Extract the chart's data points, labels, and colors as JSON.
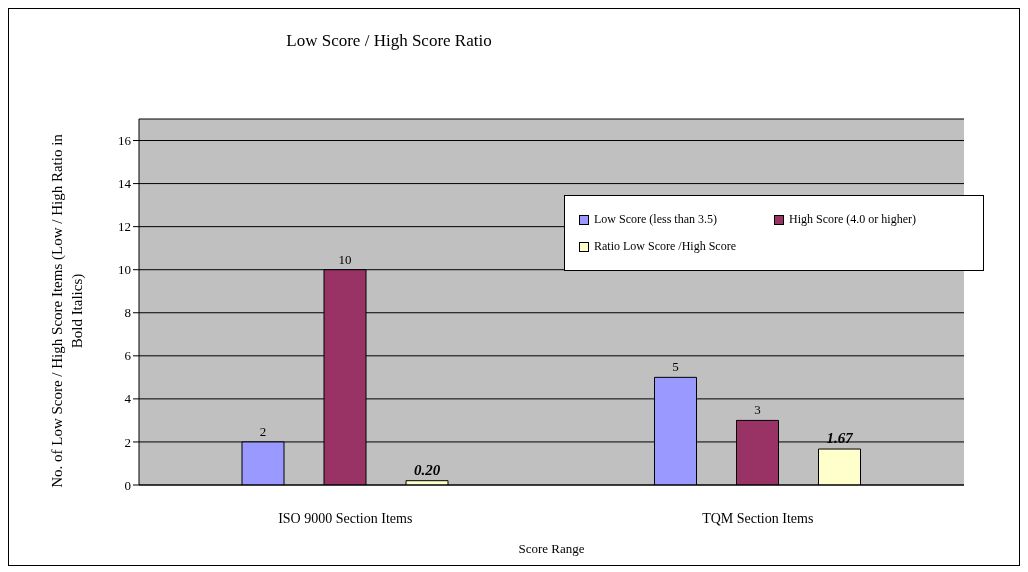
{
  "chart_data": {
    "type": "bar",
    "title": "Low Score / High Score Ratio",
    "xlabel": "Score Range",
    "ylabel": "No. of Low Score / High Score Items (Low / High Ratio in Bold Italics)",
    "categories": [
      "ISO 9000 Section Items",
      "TQM Section Items"
    ],
    "series": [
      {
        "name": "Low Score (less than 3.5)",
        "color": "#9999ff",
        "values": [
          2,
          5
        ],
        "value_labels": [
          "2",
          "5"
        ]
      },
      {
        "name": "High Score (4.0 or higher)",
        "color": "#993366",
        "values": [
          10,
          3
        ],
        "value_labels": [
          "10",
          "3"
        ]
      },
      {
        "name": "Ratio Low Score /High Score",
        "color": "#ffffcc",
        "values": [
          0.2,
          1.67
        ],
        "value_labels": [
          "0.20",
          "1.67"
        ]
      }
    ],
    "ylim": [
      0,
      17
    ],
    "yticks": [
      0,
      2,
      4,
      6,
      8,
      10,
      12,
      14,
      16
    ],
    "grid": "y",
    "legend": "top right"
  }
}
